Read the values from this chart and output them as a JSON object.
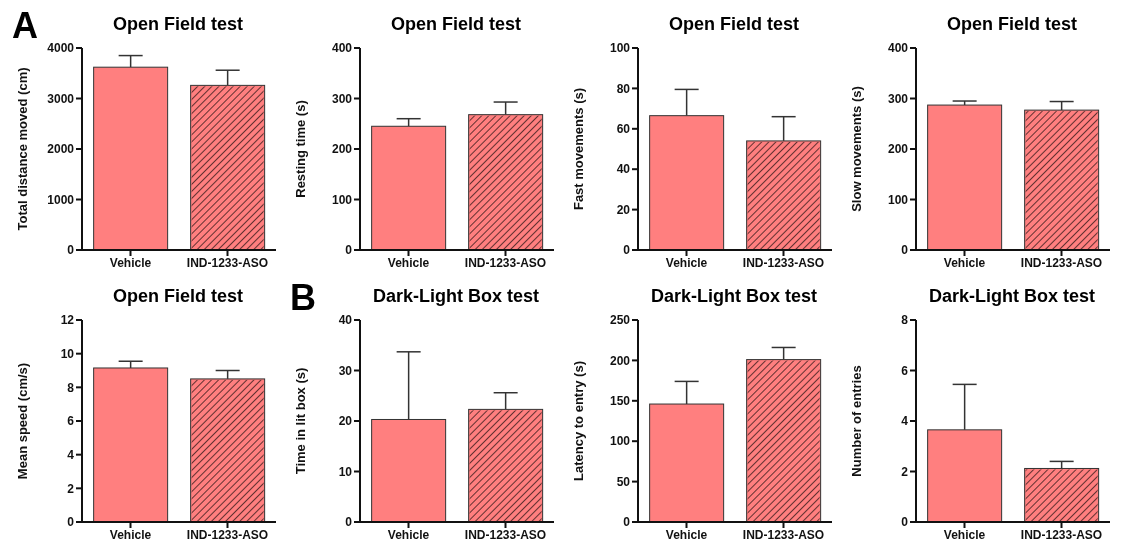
{
  "chart_data": [
    {
      "type": "bar",
      "title": "Open Field test",
      "ylabel": "Total distance moved (cm)",
      "categories": [
        "Vehicle",
        "IND-1233-ASO"
      ],
      "values": [
        3620,
        3260
      ],
      "errors": [
        [
          3620,
          3850
        ],
        [
          3260,
          3560
        ]
      ],
      "colors": [
        "#ff7f7f",
        "#ff7f7f"
      ],
      "ylim": [
        0,
        4000
      ],
      "yticks": [
        0,
        1000,
        2000,
        3000,
        4000
      ],
      "annotations": [
        "A"
      ]
    },
    {
      "type": "bar",
      "title": "Open Field test",
      "ylabel": "Resting time (s)",
      "categories": [
        "Vehicle",
        "IND-1233-ASO"
      ],
      "values": [
        245,
        268
      ],
      "errors": [
        [
          245,
          260
        ],
        [
          268,
          293
        ]
      ],
      "colors": [
        "#ff7f7f",
        "#ff7f7f"
      ],
      "ylim": [
        0,
        400
      ],
      "yticks": [
        0,
        100,
        200,
        300,
        400
      ]
    },
    {
      "type": "bar",
      "title": "Open Field test",
      "ylabel": "Fast movements (s)",
      "categories": [
        "Vehicle",
        "IND-1233-ASO"
      ],
      "values": [
        66.5,
        54
      ],
      "errors": [
        [
          66.5,
          79.5
        ],
        [
          54,
          66
        ]
      ],
      "colors": [
        "#ff7f7f",
        "#ff7f7f"
      ],
      "ylim": [
        0,
        100
      ],
      "yticks": [
        0,
        20,
        40,
        60,
        80,
        100
      ]
    },
    {
      "type": "bar",
      "title": "Open Field test",
      "ylabel": "Slow movements (s)",
      "categories": [
        "Vehicle",
        "IND-1233-ASO"
      ],
      "values": [
        287,
        277
      ],
      "errors": [
        [
          287,
          295
        ],
        [
          277,
          294
        ]
      ],
      "colors": [
        "#ff7f7f",
        "#ff7f7f"
      ],
      "ylim": [
        0,
        400
      ],
      "yticks": [
        0,
        100,
        200,
        300,
        400
      ]
    },
    {
      "type": "bar",
      "title": "Open Field test",
      "ylabel": "Mean speed (cm/s)",
      "categories": [
        "Vehicle",
        "IND-1233-ASO"
      ],
      "values": [
        9.15,
        8.5
      ],
      "errors": [
        [
          9.15,
          9.55
        ],
        [
          8.5,
          9.0
        ]
      ],
      "colors": [
        "#ff7f7f",
        "#ff7f7f"
      ],
      "ylim": [
        0,
        12
      ],
      "yticks": [
        0,
        2,
        4,
        6,
        8,
        10,
        12
      ]
    },
    {
      "type": "bar",
      "title": "Dark-Light Box test",
      "ylabel": "Time in lit box (s)",
      "categories": [
        "Vehicle",
        "IND-1233-ASO"
      ],
      "values": [
        20.3,
        22.3
      ],
      "errors": [
        [
          20.3,
          33.7
        ],
        [
          22.3,
          25.6
        ]
      ],
      "colors": [
        "#ff7f7f",
        "#ff7f7f"
      ],
      "ylim": [
        0,
        40
      ],
      "yticks": [
        0,
        10,
        20,
        30,
        40
      ],
      "annotations": [
        "B"
      ]
    },
    {
      "type": "bar",
      "title": "Dark-Light Box test",
      "ylabel": "Latency to entry (s)",
      "categories": [
        "Vehicle",
        "IND-1233-ASO"
      ],
      "values": [
        146,
        201
      ],
      "errors": [
        [
          146,
          174
        ],
        [
          201,
          216
        ]
      ],
      "colors": [
        "#ff7f7f",
        "#ff7f7f"
      ],
      "ylim": [
        0,
        250
      ],
      "yticks": [
        0,
        50,
        100,
        150,
        200,
        250
      ]
    },
    {
      "type": "bar",
      "title": "Dark-Light Box test",
      "ylabel": "Number of entries",
      "categories": [
        "Vehicle",
        "IND-1233-ASO"
      ],
      "values": [
        3.65,
        2.12
      ],
      "errors": [
        [
          3.65,
          5.45
        ],
        [
          2.12,
          2.4
        ]
      ],
      "colors": [
        "#ff7f7f",
        "#ff7f7f"
      ],
      "ylim": [
        0,
        8
      ],
      "yticks": [
        0,
        2,
        4,
        6,
        8
      ]
    }
  ]
}
